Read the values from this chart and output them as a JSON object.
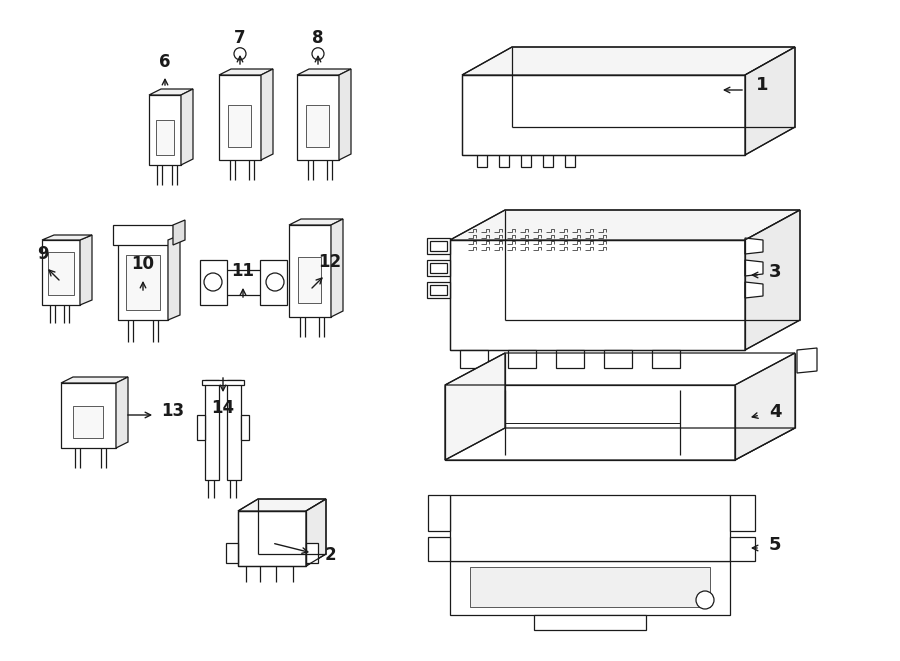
{
  "bg_color": "#ffffff",
  "line_color": "#1a1a1a",
  "fig_width": 9.0,
  "fig_height": 6.61,
  "dpi": 100,
  "lw": 0.9
}
